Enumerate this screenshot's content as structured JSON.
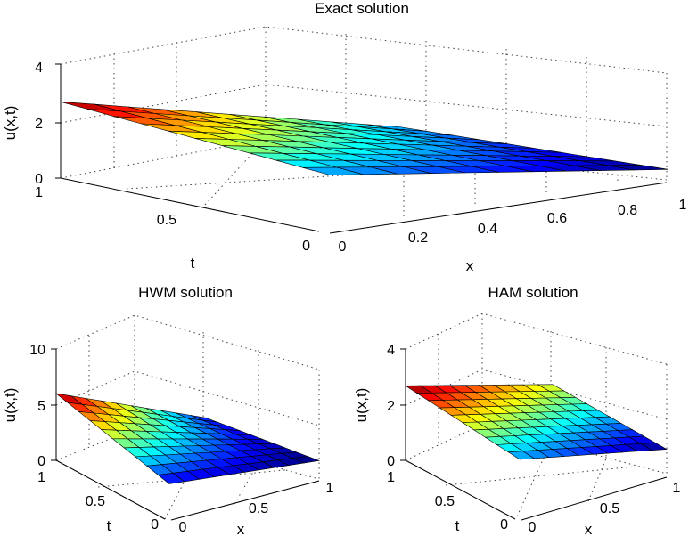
{
  "figure": {
    "panels": [
      {
        "title": "Exact solution",
        "xlabel": "x",
        "ylabel": "t",
        "zlabel": "u(x,t)",
        "x_ticks": [
          "0",
          "0.2",
          "0.4",
          "0.6",
          "0.8",
          "1"
        ],
        "t_ticks": [
          "0",
          "0.5",
          "1"
        ],
        "z_ticks": [
          "0",
          "2",
          "4"
        ]
      },
      {
        "title": "HWM solution",
        "xlabel": "x",
        "ylabel": "t",
        "zlabel": "u(x,t)",
        "x_ticks": [
          "0",
          "0.5",
          "1"
        ],
        "t_ticks": [
          "0",
          "0.5",
          "1"
        ],
        "z_ticks": [
          "0",
          "5",
          "10"
        ]
      },
      {
        "title": "HAM solution",
        "xlabel": "x",
        "ylabel": "t",
        "zlabel": "u(x,t)",
        "x_ticks": [
          "0",
          "0.5",
          "1"
        ],
        "t_ticks": [
          "0",
          "0.5",
          "1"
        ],
        "z_ticks": [
          "0",
          "2",
          "4"
        ]
      }
    ]
  },
  "chart_data": [
    {
      "type": "surface",
      "title": "Exact solution",
      "xlabel": "x",
      "ylabel": "t",
      "zlabel": "u(x,t)",
      "xlim": [
        0,
        1
      ],
      "ylim": [
        0,
        1
      ],
      "zlim": [
        0,
        4
      ],
      "grid": true,
      "colormap": "jet",
      "x": [
        0,
        0.1,
        0.2,
        0.3,
        0.4,
        0.5,
        0.6,
        0.7,
        0.8,
        0.9,
        1
      ],
      "t": [
        0,
        0.1,
        0.2,
        0.3,
        0.4,
        0.5,
        0.6,
        0.7,
        0.8,
        0.9,
        1
      ],
      "u_corners": {
        "x0_t0": 1.0,
        "x1_t0": 0.37,
        "x0_t1": 2.72,
        "x1_t1": 1.0
      }
    },
    {
      "type": "surface",
      "title": "HWM solution",
      "xlabel": "x",
      "ylabel": "t",
      "zlabel": "u(x,t)",
      "xlim": [
        0,
        1
      ],
      "ylim": [
        0,
        1
      ],
      "zlim": [
        0,
        10
      ],
      "grid": true,
      "colormap": "jet",
      "x": [
        0,
        0.1,
        0.2,
        0.3,
        0.4,
        0.5,
        0.6,
        0.7,
        0.8,
        0.9,
        1
      ],
      "t": [
        0,
        0.1,
        0.2,
        0.3,
        0.4,
        0.5,
        0.6,
        0.7,
        0.8,
        0.9,
        1
      ],
      "u_corners": {
        "x0_t0": 1.0,
        "x1_t0": 0.37,
        "x0_t1": 6.0,
        "x1_t1": 1.1
      }
    },
    {
      "type": "surface",
      "title": "HAM solution",
      "xlabel": "x",
      "ylabel": "t",
      "zlabel": "u(x,t)",
      "xlim": [
        0,
        1
      ],
      "ylim": [
        0,
        1
      ],
      "zlim": [
        0,
        4
      ],
      "grid": true,
      "colormap": "jet",
      "x": [
        0,
        0.1,
        0.2,
        0.3,
        0.4,
        0.5,
        0.6,
        0.7,
        0.8,
        0.9,
        1
      ],
      "t": [
        0,
        0.1,
        0.2,
        0.3,
        0.4,
        0.5,
        0.6,
        0.7,
        0.8,
        0.9,
        1
      ],
      "u_corners": {
        "x0_t0": 1.0,
        "x1_t0": 0.37,
        "x0_t1": 2.7,
        "x1_t1": 1.75
      }
    }
  ]
}
